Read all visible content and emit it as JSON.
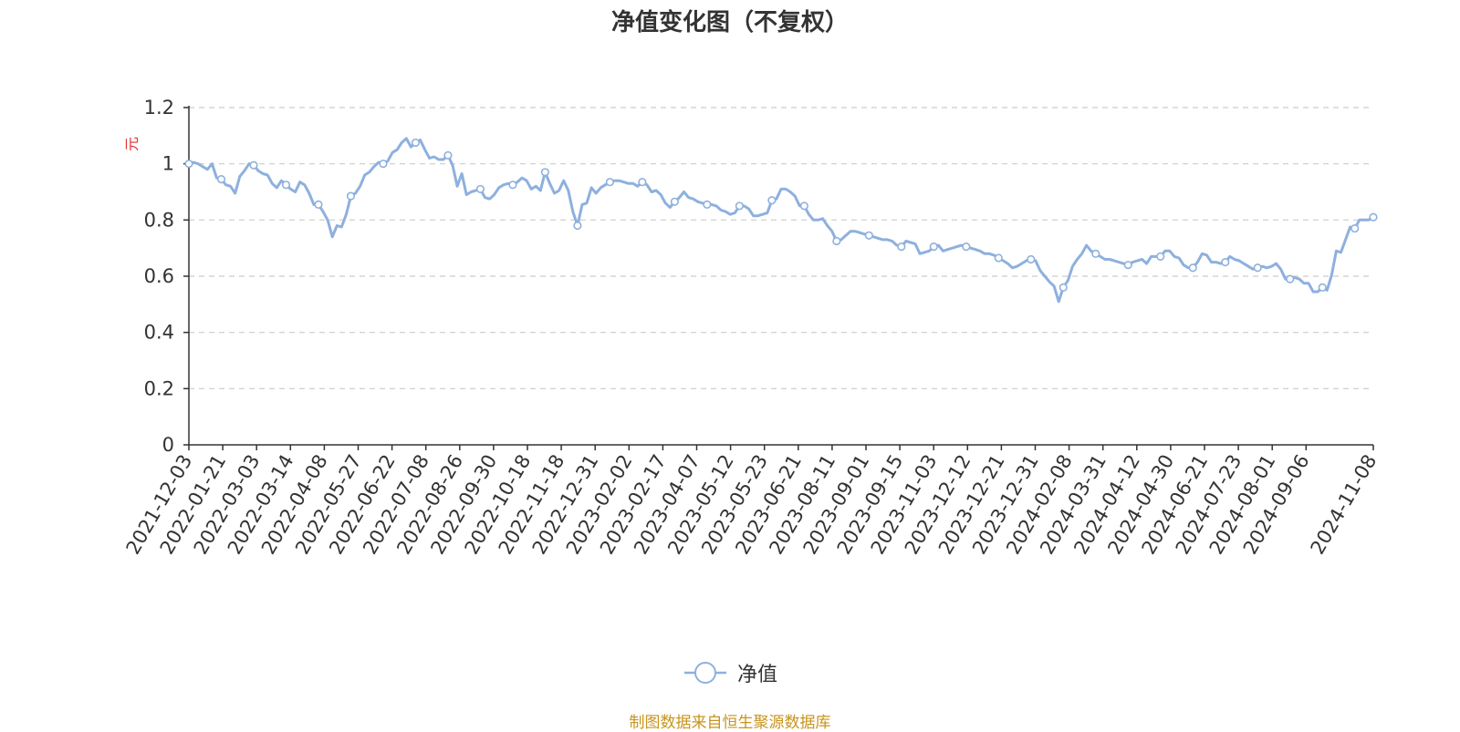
{
  "chart_data": {
    "type": "line",
    "title": "净值变化图（不复权）",
    "ylabel": "元",
    "ylim": [
      0,
      1.2
    ],
    "yticks": [
      "0",
      "0.2",
      "0.4",
      "0.6",
      "0.8",
      "1",
      "1.2"
    ],
    "grid": true,
    "legend_position": "bottom-center",
    "x_tick_labels": [
      "2021-12-03",
      "2022-01-21",
      "2022-03-03",
      "2022-03-14",
      "2022-04-08",
      "2022-05-27",
      "2022-06-22",
      "2022-07-08",
      "2022-08-26",
      "2022-09-30",
      "2022-10-18",
      "2022-11-18",
      "2022-12-31",
      "2023-02-02",
      "2023-02-17",
      "2023-04-07",
      "2023-05-12",
      "2023-05-23",
      "2023-06-21",
      "2023-08-11",
      "2023-09-01",
      "2023-09-15",
      "2023-11-03",
      "2023-12-12",
      "2023-12-21",
      "2023-12-31",
      "2024-02-08",
      "2024-03-31",
      "2024-04-12",
      "2024-04-30",
      "2024-06-21",
      "2024-07-23",
      "2024-08-01",
      "2024-09-06",
      "2024-11-08"
    ],
    "series": [
      {
        "name": "净值",
        "color": "#8eb0de",
        "values": [
          1.0,
          1.005,
          1.0,
          0.99,
          0.98,
          1.0,
          0.95,
          0.945,
          0.925,
          0.92,
          0.895,
          0.955,
          0.975,
          1.0,
          0.995,
          0.975,
          0.965,
          0.96,
          0.93,
          0.915,
          0.94,
          0.925,
          0.91,
          0.9,
          0.935,
          0.925,
          0.895,
          0.855,
          0.855,
          0.83,
          0.8,
          0.74,
          0.78,
          0.775,
          0.82,
          0.885,
          0.895,
          0.92,
          0.96,
          0.97,
          0.99,
          1.005,
          1.0,
          1.01,
          1.04,
          1.05,
          1.075,
          1.09,
          1.06,
          1.075,
          1.085,
          1.05,
          1.02,
          1.025,
          1.015,
          1.015,
          1.03,
          0.995,
          0.92,
          0.965,
          0.89,
          0.9,
          0.905,
          0.91,
          0.88,
          0.875,
          0.89,
          0.915,
          0.925,
          0.93,
          0.925,
          0.935,
          0.95,
          0.94,
          0.91,
          0.92,
          0.905,
          0.97,
          0.93,
          0.895,
          0.905,
          0.94,
          0.905,
          0.83,
          0.78,
          0.855,
          0.86,
          0.915,
          0.895,
          0.915,
          0.925,
          0.935,
          0.94,
          0.94,
          0.935,
          0.93,
          0.93,
          0.92,
          0.935,
          0.925,
          0.9,
          0.905,
          0.89,
          0.86,
          0.845,
          0.865,
          0.88,
          0.9,
          0.88,
          0.875,
          0.865,
          0.86,
          0.855,
          0.855,
          0.85,
          0.835,
          0.83,
          0.82,
          0.825,
          0.85,
          0.85,
          0.84,
          0.815,
          0.815,
          0.82,
          0.825,
          0.87,
          0.875,
          0.91,
          0.91,
          0.9,
          0.885,
          0.85,
          0.85,
          0.82,
          0.8,
          0.8,
          0.805,
          0.78,
          0.76,
          0.725,
          0.73,
          0.745,
          0.76,
          0.76,
          0.755,
          0.75,
          0.745,
          0.74,
          0.735,
          0.73,
          0.73,
          0.725,
          0.71,
          0.705,
          0.725,
          0.72,
          0.715,
          0.68,
          0.685,
          0.69,
          0.705,
          0.71,
          0.69,
          0.695,
          0.7,
          0.705,
          0.71,
          0.705,
          0.7,
          0.695,
          0.69,
          0.68,
          0.68,
          0.675,
          0.665,
          0.655,
          0.645,
          0.63,
          0.635,
          0.645,
          0.655,
          0.66,
          0.655,
          0.62,
          0.6,
          0.58,
          0.565,
          0.51,
          0.56,
          0.585,
          0.635,
          0.66,
          0.68,
          0.71,
          0.69,
          0.68,
          0.67,
          0.66,
          0.66,
          0.655,
          0.65,
          0.645,
          0.64,
          0.65,
          0.655,
          0.66,
          0.645,
          0.67,
          0.67,
          0.67,
          0.69,
          0.69,
          0.67,
          0.665,
          0.64,
          0.63,
          0.63,
          0.65,
          0.68,
          0.675,
          0.65,
          0.65,
          0.645,
          0.65,
          0.67,
          0.66,
          0.655,
          0.645,
          0.635,
          0.625,
          0.63,
          0.635,
          0.63,
          0.635,
          0.645,
          0.625,
          0.59,
          0.59,
          0.595,
          0.59,
          0.575,
          0.575,
          0.545,
          0.545,
          0.56,
          0.55,
          0.605,
          0.69,
          0.685,
          0.73,
          0.775,
          0.77,
          0.8,
          0.8,
          0.8,
          0.81
        ]
      }
    ]
  },
  "legend": {
    "label": "净值"
  },
  "source_note": {
    "text": "制图数据来自恒生聚源数据库",
    "color": "#c8941e"
  },
  "colors": {
    "axis": "#333333",
    "grid": "#cccccc",
    "ylabel": "#e03030"
  }
}
